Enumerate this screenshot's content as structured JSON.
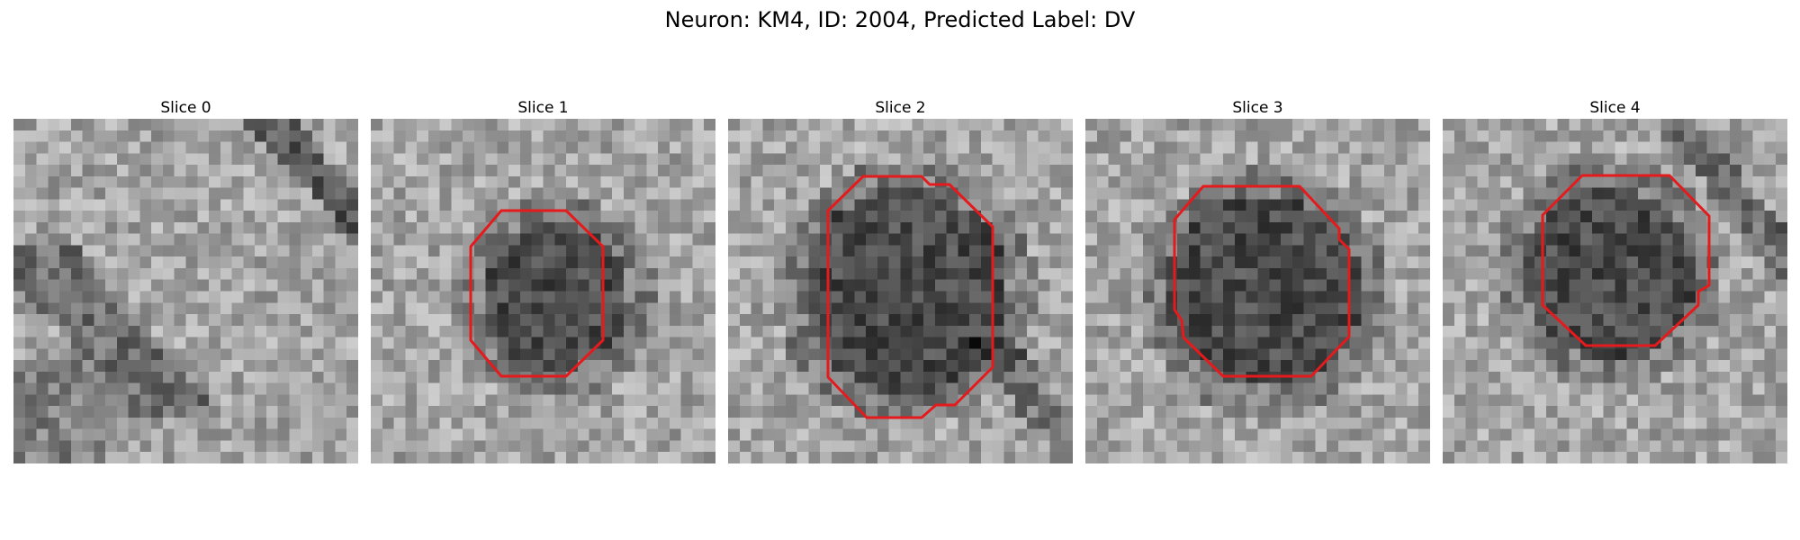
{
  "figure": {
    "title": "Neuron: KM4, ID: 2004, Predicted Label: DV"
  },
  "contour_color": "#e41a1c",
  "panels": [
    {
      "title": "Slice 0",
      "has_contour": false
    },
    {
      "title": "Slice 1",
      "has_contour": true
    },
    {
      "title": "Slice 2",
      "has_contour": true
    },
    {
      "title": "Slice 3",
      "has_contour": true
    },
    {
      "title": "Slice 4",
      "has_contour": true
    }
  ]
}
